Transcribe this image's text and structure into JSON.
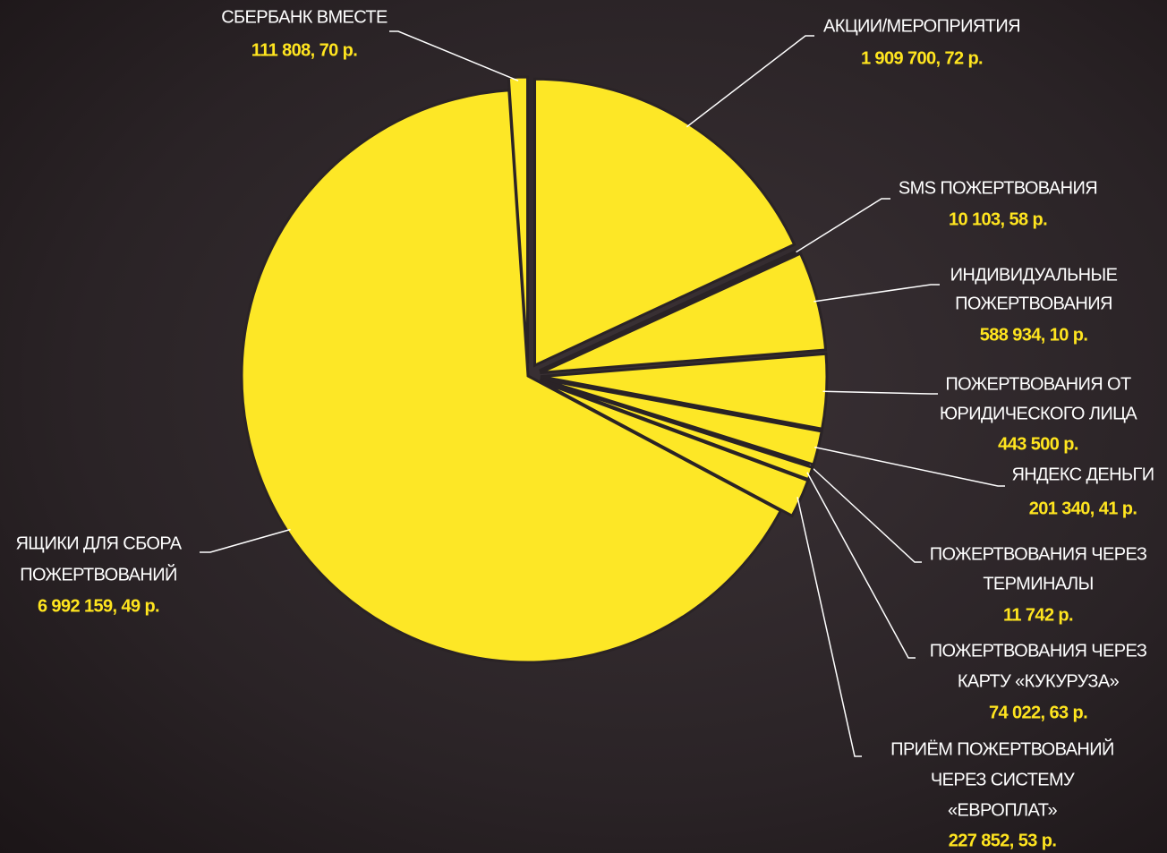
{
  "chart_data": {
    "type": "pie",
    "categories": [
      [
        "СБЕРБАНК ВМЕСТЕ"
      ],
      [
        "АКЦИИ/МЕРОПРИЯТИЯ"
      ],
      [
        "SMS ПОЖЕРТВОВАНИЯ"
      ],
      [
        "ИНДИВИДУАЛЬНЫЕ",
        "ПОЖЕРТВОВАНИЯ"
      ],
      [
        "ПОЖЕРТВОВАНИЯ ОТ",
        "ЮРИДИЧЕСКОГО ЛИЦА"
      ],
      [
        "ЯНДЕКС ДЕНЬГИ"
      ],
      [
        "ПОЖЕРТВОВАНИЯ ЧЕРЕЗ",
        "ТЕРМИНАЛЫ"
      ],
      [
        "ПОЖЕРТВОВАНИЯ ЧЕРЕЗ",
        "КАРТУ «КУКУРУЗА»"
      ],
      [
        "ПРИЁМ ПОЖЕРТВОВАНИЙ",
        "ЧЕРЕЗ СИСТЕМУ",
        "«ЕВРОПЛАТ»"
      ],
      [
        "ЯЩИКИ ДЛЯ СБОРА",
        "ПОЖЕРТВОВАНИЙ"
      ]
    ],
    "values": [
      111808.7,
      1909700.72,
      10103.58,
      588934.1,
      443500,
      201340.41,
      11742,
      74022.63,
      227852.53,
      6992159.49
    ],
    "value_labels": [
      "111 808, 70 р.",
      "1 909 700, 72 р.",
      "10 103,  58 р.",
      "588 934, 10 р.",
      "443 500 р.",
      "201 340, 41 р.",
      "11 742 р.",
      "74 022, 63 р.",
      "227 852, 53 р.",
      "6 992 159, 49 р."
    ],
    "color": "#fde726"
  }
}
